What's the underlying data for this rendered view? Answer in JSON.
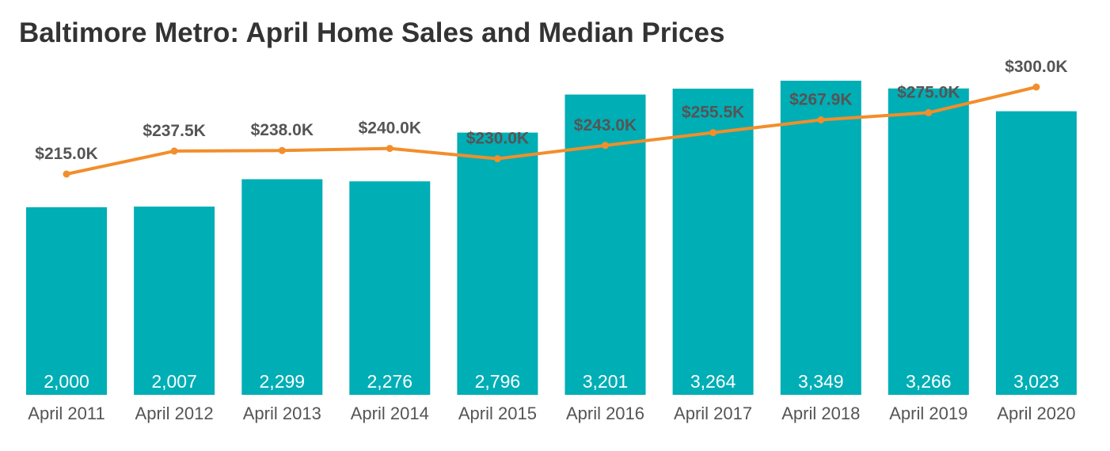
{
  "chart_data": {
    "type": "bar",
    "title": "Baltimore Metro: April Home Sales and Median Prices",
    "categories": [
      "April 2011",
      "April 2012",
      "April 2013",
      "April 2014",
      "April 2015",
      "April 2016",
      "April 2017",
      "April 2018",
      "April 2019",
      "April 2020"
    ],
    "series": [
      {
        "type": "bar",
        "values": [
          2000,
          2007,
          2299,
          2276,
          2796,
          3201,
          3264,
          3349,
          3266,
          3023
        ],
        "labels": [
          "2,000",
          "2,007",
          "2,299",
          "2,276",
          "2,796",
          "3,201",
          "3,264",
          "3,349",
          "3,266",
          "3,023"
        ],
        "color": "#00AEB5"
      },
      {
        "type": "line",
        "values": [
          215.0,
          237.5,
          238.0,
          240.0,
          230.0,
          243.0,
          255.5,
          267.9,
          275.0,
          300.0
        ],
        "labels": [
          "$215.0K",
          "$237.5K",
          "$238.0K",
          "$240.0K",
          "$230.0K",
          "$243.0K",
          "$255.5K",
          "$267.9K",
          "$275.0K",
          "$300.0K"
        ],
        "color": "#F28E2B"
      }
    ],
    "grid": false,
    "legend": "none"
  }
}
